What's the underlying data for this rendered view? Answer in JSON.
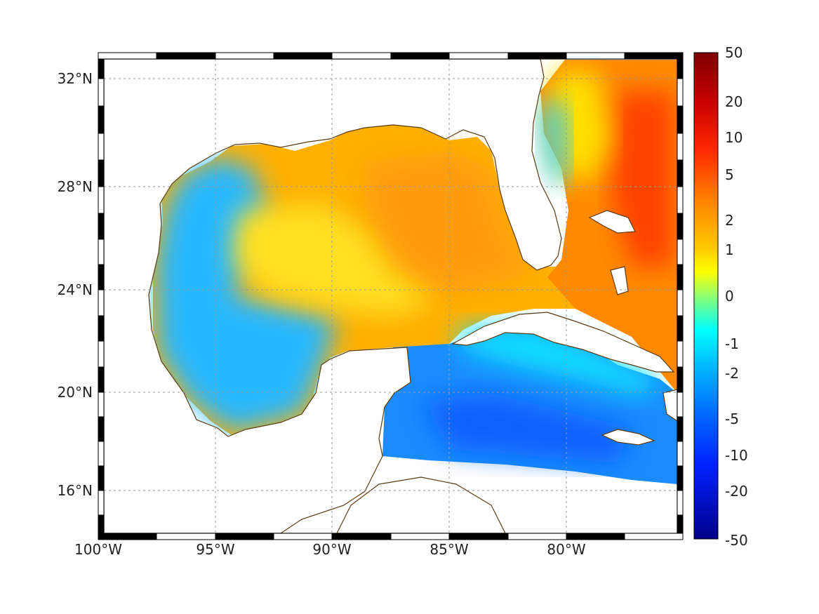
{
  "map": {
    "region": "Gulf of Mexico and Caribbean",
    "lon_ticks": [
      "100°W",
      "95°W",
      "90°W",
      "85°W",
      "80°W"
    ],
    "lat_ticks": [
      "32°N",
      "28°N",
      "24°N",
      "20°N",
      "16°N"
    ],
    "lon_range": [
      -100,
      -75
    ],
    "lat_range": [
      14.2,
      33.1
    ],
    "grid": true,
    "coastline_color": "#5a3a10"
  },
  "colorbar": {
    "ticks": [
      "50",
      "20",
      "10",
      "5",
      "2",
      "1",
      "0",
      "-1",
      "-2",
      "-5",
      "-10",
      "-20",
      "-50"
    ],
    "colors": [
      "#7f0000",
      "#c00000",
      "#ff3000",
      "#ff8c00",
      "#ffd000",
      "#ffff00",
      "#90ff70",
      "#00ffff",
      "#00c8ff",
      "#0078ff",
      "#0030ff",
      "#0000b0",
      "#00008a"
    ],
    "scale": "symmetric-nonlinear"
  }
}
